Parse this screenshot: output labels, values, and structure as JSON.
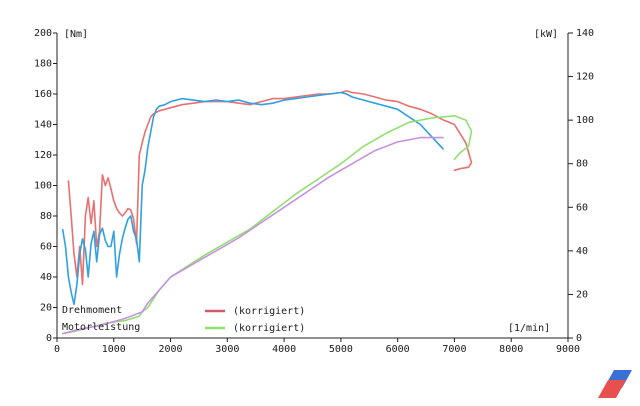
{
  "chart_data": {
    "type": "line",
    "x_unit_label": "[1/min]",
    "y_left_unit_label": "[Nm]",
    "y_right_unit_label": "[kW]",
    "xlim": [
      0,
      9000
    ],
    "ylim_left": [
      0,
      200
    ],
    "ylim_right": [
      0,
      140
    ],
    "x_ticks": [
      "0",
      "1000",
      "2000",
      "3000",
      "4000",
      "5000",
      "6000",
      "7000",
      "8000",
      "9000"
    ],
    "y_left_ticks": [
      "0",
      "20",
      "40",
      "60",
      "80",
      "100",
      "120",
      "140",
      "160",
      "180",
      "200"
    ],
    "y_right_ticks": [
      "0",
      "20",
      "40",
      "60",
      "80",
      "100",
      "120",
      "140"
    ],
    "x_tick_values": [
      0,
      1000,
      2000,
      3000,
      4000,
      5000,
      6000,
      7000,
      8000,
      9000
    ],
    "y_left_tick_values": [
      0,
      20,
      40,
      60,
      80,
      100,
      120,
      140,
      160,
      180,
      200
    ],
    "y_right_tick_values": [
      0,
      20,
      40,
      60,
      80,
      100,
      120,
      140
    ],
    "legend": [
      {
        "label": "Drehmoment",
        "key_label": "(korrigiert)",
        "label_color": "#6b2a2a",
        "line_color": "#d05a6a"
      },
      {
        "label": "Motorleistung",
        "key_label": "(korrigiert)",
        "label_color": "#d04a3a",
        "line_color": "#90e070"
      }
    ],
    "series": [
      {
        "name": "Drehmoment",
        "axis": "left",
        "color": "#e87070",
        "x": [
          200,
          250,
          300,
          350,
          400,
          450,
          500,
          550,
          600,
          650,
          700,
          750,
          800,
          850,
          900,
          950,
          1000,
          1050,
          1100,
          1150,
          1200,
          1250,
          1300,
          1350,
          1400,
          1450,
          1500,
          1550,
          1600,
          1650,
          1700,
          1750,
          1800,
          1900,
          2000,
          2200,
          2400,
          2600,
          2800,
          3000,
          3200,
          3400,
          3600,
          3800,
          4000,
          4200,
          4400,
          4600,
          4800,
          5000,
          5100,
          5200,
          5400,
          5600,
          5800,
          6000,
          6200,
          6400,
          6600,
          6800,
          7000,
          7200,
          7300,
          7250,
          7100,
          7000
        ],
        "y": [
          103,
          80,
          55,
          40,
          60,
          35,
          80,
          92,
          75,
          90,
          60,
          70,
          107,
          100,
          105,
          98,
          90,
          85,
          82,
          80,
          82,
          85,
          84,
          78,
          62,
          120,
          128,
          135,
          140,
          145,
          147,
          148,
          149,
          150,
          151,
          153,
          154,
          155,
          155,
          155,
          154,
          153,
          155,
          157,
          157,
          158,
          159,
          160,
          160,
          161,
          162,
          161,
          160,
          158,
          156,
          155,
          152,
          150,
          147,
          143,
          140,
          128,
          115,
          112,
          111,
          110
        ]
      },
      {
        "name": "Drehmoment",
        "axis": "left",
        "color": "#30a0e0",
        "x": [
          100,
          150,
          200,
          250,
          300,
          350,
          400,
          450,
          500,
          550,
          600,
          650,
          700,
          750,
          800,
          850,
          900,
          950,
          1000,
          1050,
          1100,
          1150,
          1200,
          1250,
          1300,
          1350,
          1400,
          1450,
          1500,
          1550,
          1600,
          1650,
          1700,
          1750,
          1800,
          1900,
          2000,
          2200,
          2400,
          2600,
          2800,
          3000,
          3200,
          3400,
          3600,
          3800,
          4000,
          4200,
          4400,
          4600,
          4800,
          5000,
          5100,
          5200,
          5400,
          5600,
          5800,
          6000,
          6200,
          6400,
          6600,
          6800
        ],
        "y": [
          71,
          60,
          40,
          30,
          22,
          35,
          55,
          65,
          58,
          40,
          62,
          70,
          50,
          68,
          72,
          64,
          60,
          60,
          70,
          40,
          55,
          65,
          72,
          78,
          80,
          70,
          65,
          50,
          100,
          110,
          125,
          135,
          145,
          150,
          152,
          153,
          155,
          157,
          156,
          155,
          156,
          155,
          156,
          154,
          153,
          154,
          156,
          157,
          158,
          159,
          160,
          161,
          160,
          158,
          156,
          154,
          152,
          150,
          145,
          140,
          132,
          124
        ]
      },
      {
        "name": "Motorleistung",
        "axis": "right",
        "color": "#90e070",
        "x": [
          100,
          300,
          600,
          900,
          1200,
          1450,
          1500,
          1600,
          1700,
          1800,
          2000,
          2300,
          2600,
          3000,
          3400,
          3800,
          4200,
          4600,
          5000,
          5400,
          5800,
          6200,
          6600,
          7000,
          7200,
          7300,
          7250,
          7100,
          7000
        ],
        "y": [
          2,
          3,
          5,
          7,
          8,
          10,
          12,
          14,
          18,
          22,
          28,
          33,
          38,
          44,
          50,
          58,
          66,
          73,
          80,
          88,
          94,
          99,
          101,
          102,
          100,
          95,
          88,
          85,
          82
        ]
      },
      {
        "name": "Motorleistung",
        "axis": "right",
        "color": "#c890e0",
        "x": [
          100,
          400,
          800,
          1200,
          1500,
          1600,
          1800,
          2000,
          2400,
          2800,
          3200,
          3600,
          4000,
          4400,
          4800,
          5200,
          5600,
          6000,
          6400,
          6800
        ],
        "y": [
          2,
          4,
          6,
          9,
          12,
          16,
          22,
          28,
          34,
          40,
          46,
          53,
          60,
          67,
          74,
          80,
          86,
          90,
          92,
          92
        ]
      }
    ]
  }
}
